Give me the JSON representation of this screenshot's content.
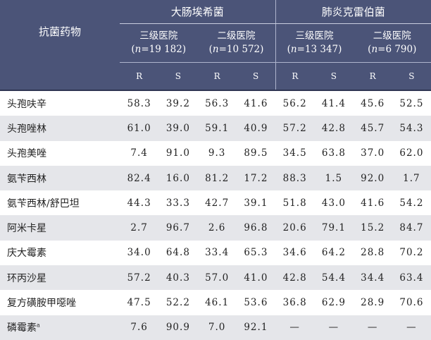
{
  "header": {
    "drug_col": "抗菌药物",
    "groups": [
      {
        "name": "大肠埃希菌",
        "hospitals": [
          {
            "name": "三级医院",
            "n_label": "n",
            "n_value": "=19 182"
          },
          {
            "name": "二级医院",
            "n_label": "n",
            "n_value": "=10 572"
          }
        ]
      },
      {
        "name": "肺炎克雷伯菌",
        "hospitals": [
          {
            "name": "三级医院",
            "n_label": "n",
            "n_value": "=13 347"
          },
          {
            "name": "二级医院",
            "n_label": "n",
            "n_value": "=6 790"
          }
        ]
      }
    ],
    "rs": [
      "R",
      "S",
      "R",
      "S",
      "R",
      "S",
      "R",
      "S"
    ]
  },
  "rows": [
    {
      "drug": "头孢呋辛",
      "sup": "",
      "values": [
        "58.3",
        "39.2",
        "56.3",
        "41.6",
        "56.2",
        "41.4",
        "45.6",
        "52.5"
      ]
    },
    {
      "drug": "头孢唑林",
      "sup": "",
      "values": [
        "61.0",
        "39.0",
        "59.1",
        "40.9",
        "57.2",
        "42.8",
        "45.7",
        "54.3"
      ]
    },
    {
      "drug": "头孢美唑",
      "sup": "",
      "values": [
        "7.4",
        "91.0",
        "9.3",
        "89.5",
        "34.5",
        "63.8",
        "37.0",
        "62.0"
      ]
    },
    {
      "drug": "氨苄西林",
      "sup": "",
      "values": [
        "82.4",
        "16.0",
        "81.2",
        "17.2",
        "88.3",
        "1.5",
        "92.0",
        "1.7"
      ]
    },
    {
      "drug": "氨苄西林/舒巴坦",
      "sup": "",
      "values": [
        "44.3",
        "33.3",
        "42.7",
        "39.1",
        "51.8",
        "43.0",
        "41.6",
        "54.2"
      ]
    },
    {
      "drug": "阿米卡星",
      "sup": "",
      "values": [
        "2.7",
        "96.7",
        "2.6",
        "96.8",
        "20.6",
        "79.1",
        "15.2",
        "84.7"
      ]
    },
    {
      "drug": "庆大霉素",
      "sup": "",
      "values": [
        "34.0",
        "64.8",
        "33.4",
        "65.3",
        "34.6",
        "64.2",
        "28.8",
        "70.2"
      ]
    },
    {
      "drug": "环丙沙星",
      "sup": "",
      "values": [
        "57.2",
        "40.3",
        "57.0",
        "41.0",
        "42.8",
        "54.4",
        "34.4",
        "63.4"
      ]
    },
    {
      "drug": "复方磺胺甲噁唑",
      "sup": "",
      "values": [
        "47.5",
        "52.2",
        "46.1",
        "53.6",
        "36.8",
        "62.9",
        "28.9",
        "70.6"
      ]
    },
    {
      "drug": "磷霉素",
      "sup": "a",
      "values": [
        "7.6",
        "90.9",
        "7.0",
        "92.1",
        "—",
        "—",
        "—",
        "—"
      ]
    }
  ]
}
